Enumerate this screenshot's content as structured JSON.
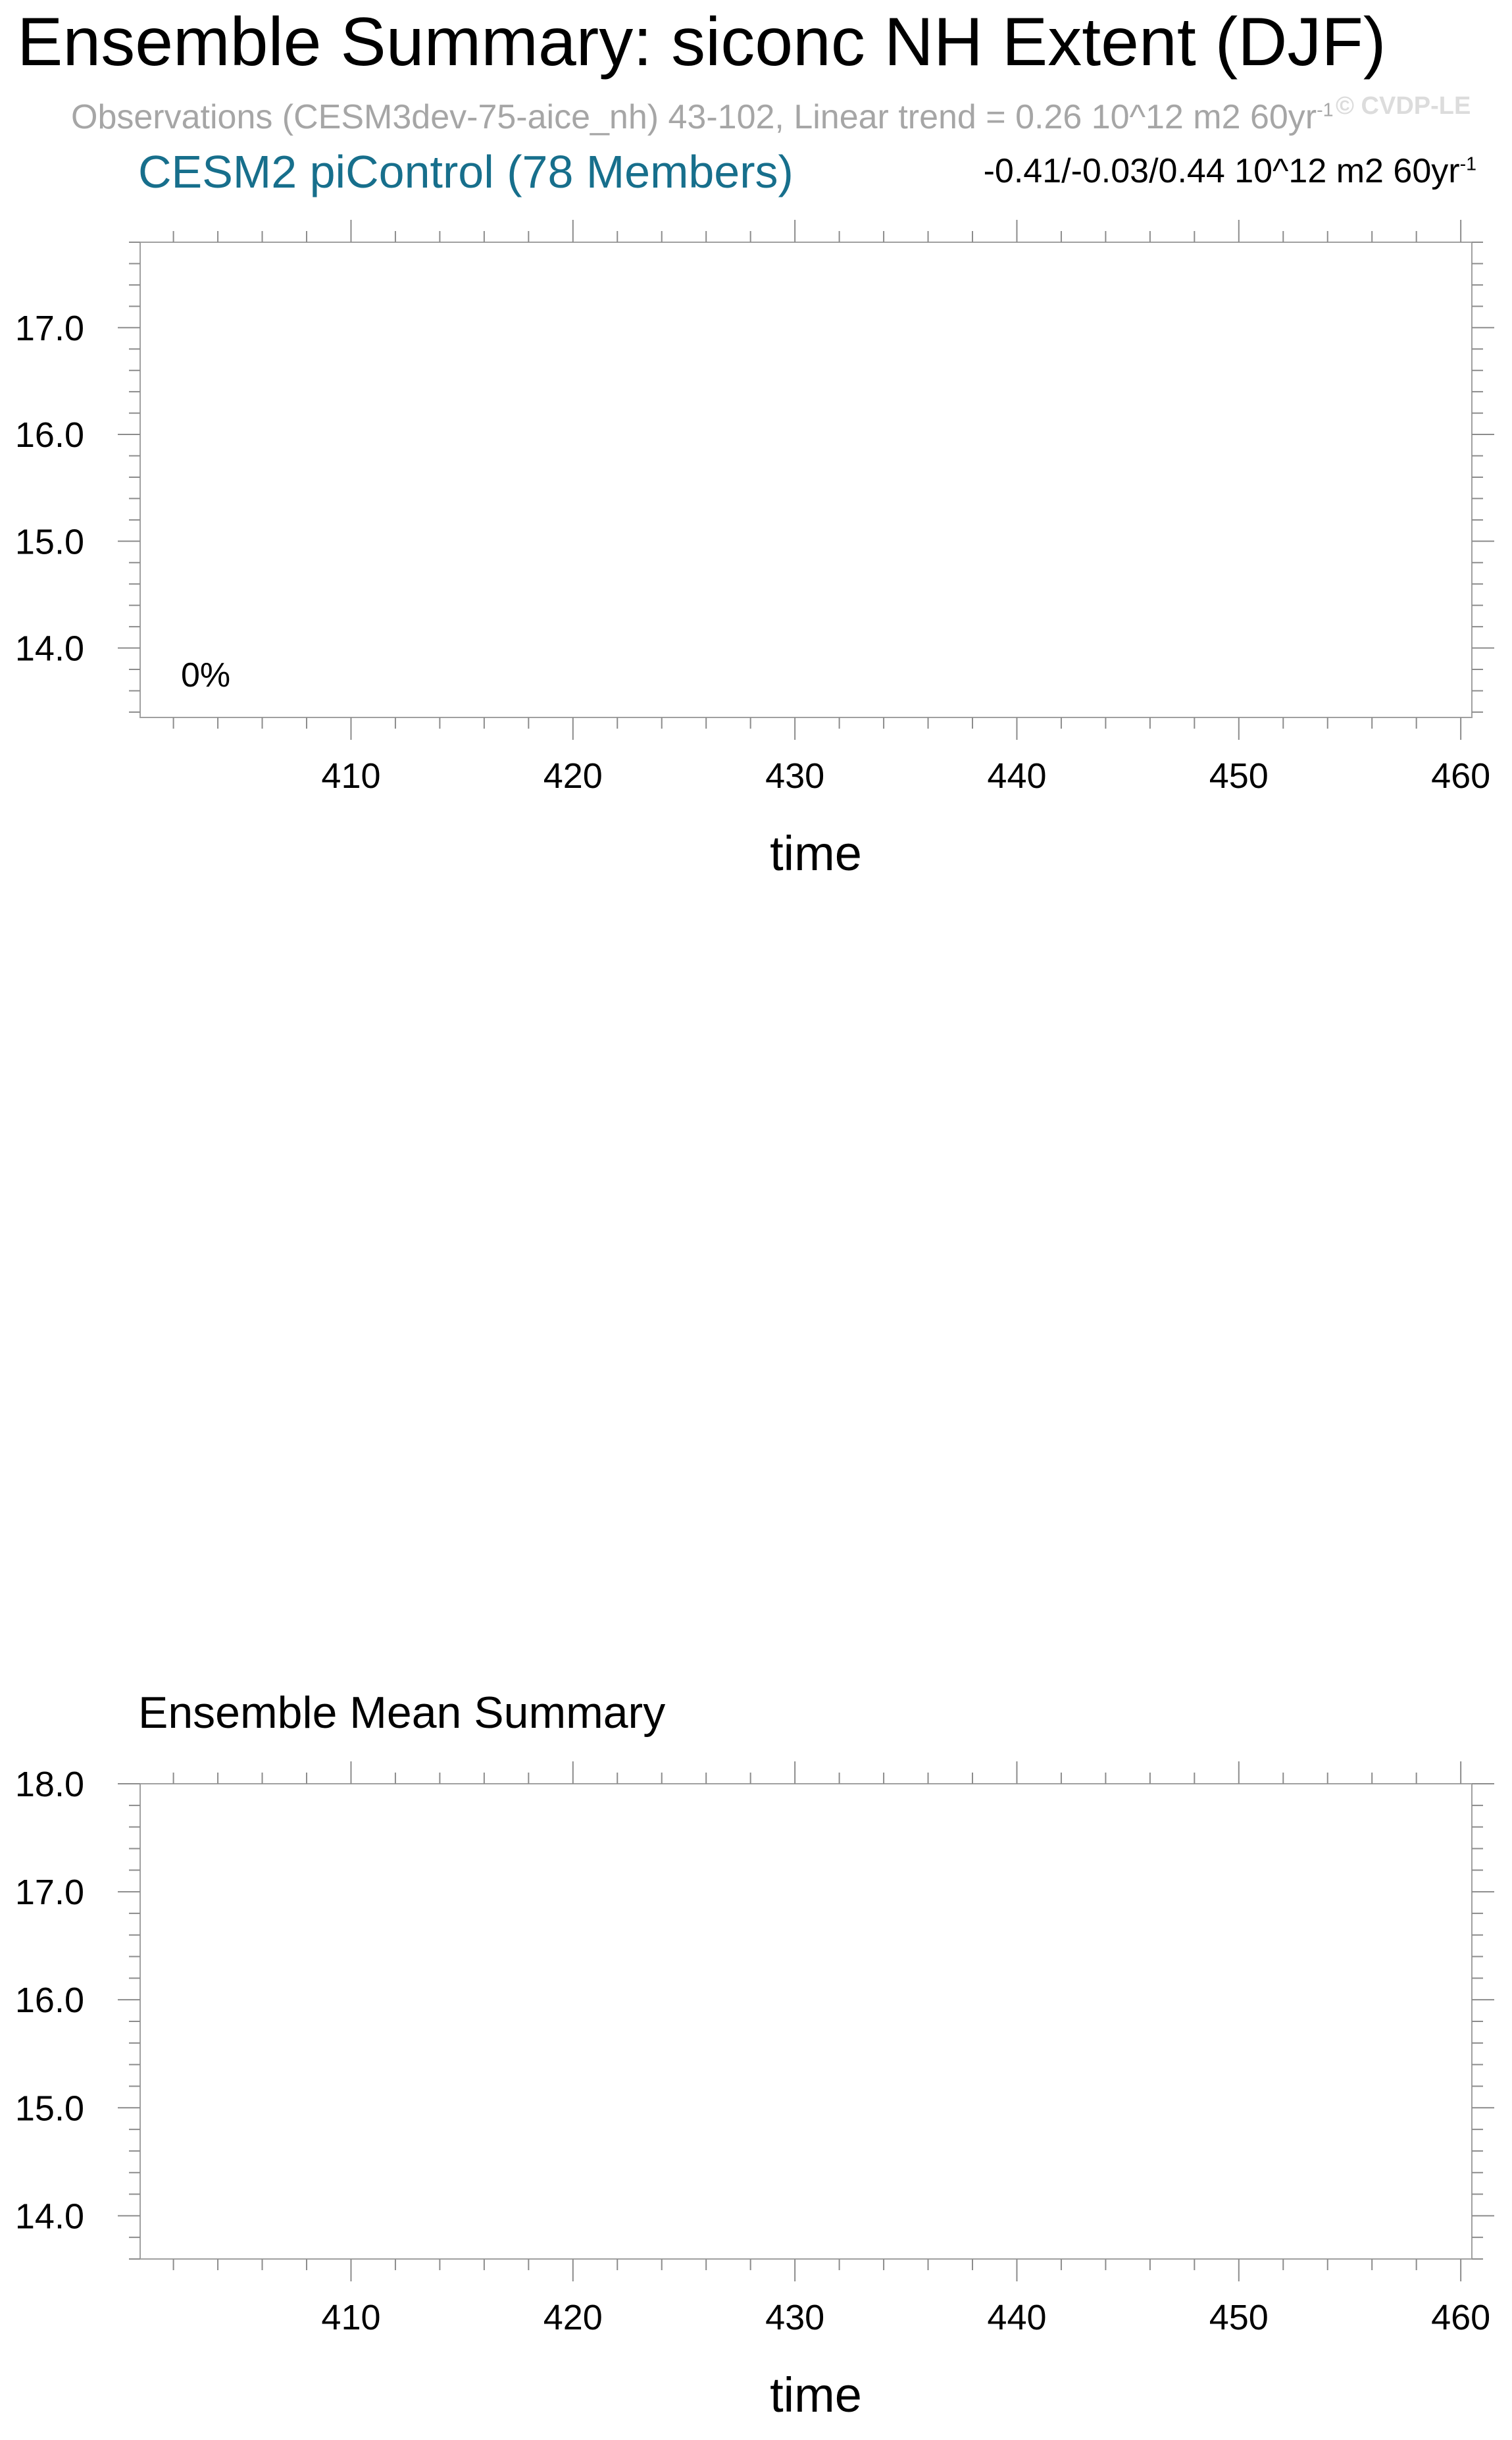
{
  "header": {
    "title": "Ensemble Summary: siconc NH Extent (DJF)",
    "observations_text": "Observations (CESM3dev-75-aice_nh) 43-102, Linear trend = 0.26 10^12 m2 60yr",
    "observations_sup": "-1",
    "watermark": "© CVDP-LE"
  },
  "chart_data": [
    {
      "type": "line",
      "title": "CESM2 piControl (78 Members)",
      "trend_label": "-0.41/-0.03/0.44 10^12 m2 60yr",
      "trend_label_sup": "-1",
      "annotation": "0%",
      "xlabel": "time",
      "ylabel": "",
      "xlim": [
        400.5,
        460.5
      ],
      "ylim": [
        13.35,
        17.8
      ],
      "xticks": [
        410,
        420,
        430,
        440,
        450,
        460
      ],
      "yticks": [
        14.0,
        15.0,
        16.0,
        17.0
      ],
      "series": []
    },
    {
      "type": "line",
      "title": "Ensemble Mean Summary",
      "xlabel": "time",
      "ylabel": "",
      "xlim": [
        400.5,
        460.5
      ],
      "ylim": [
        13.6,
        18.0
      ],
      "xticks": [
        410,
        420,
        430,
        440,
        450,
        460
      ],
      "yticks": [
        14.0,
        15.0,
        16.0,
        17.0,
        18.0
      ],
      "series": []
    }
  ]
}
